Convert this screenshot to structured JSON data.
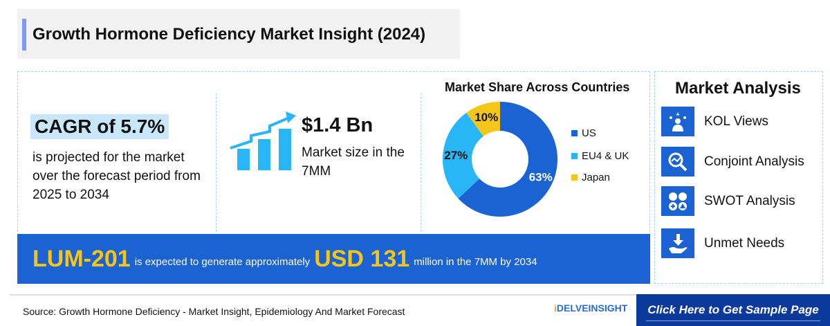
{
  "title": "Growth Hormone Deficiency Market Insight (2024)",
  "cagr": {
    "headline": "CAGR of 5.7%",
    "text": "is projected for the market over the forecast period from 2025 to 2034"
  },
  "market_size": {
    "value": "$1.4 Bn",
    "text": "Market size in the 7MM"
  },
  "chart_data": {
    "type": "pie",
    "title": "Market Share Across Countries",
    "categories": [
      "US",
      "EU4 & UK",
      "Japan"
    ],
    "values": [
      63,
      27,
      10
    ],
    "labels": [
      "63%",
      "27%",
      "10%"
    ],
    "colors": [
      "#1b63d2",
      "#29b6f6",
      "#f5c518"
    ],
    "legend": "right"
  },
  "banner": {
    "drug": "LUM-201",
    "text1": "is expected to generate approximately",
    "amount": "USD 131",
    "text2": "million in the 7MM by 2034"
  },
  "market_analysis": {
    "title": "Market Analysis",
    "items": [
      {
        "label": "KOL Views",
        "icon": "kol-icon"
      },
      {
        "label": "Conjoint Analysis",
        "icon": "analysis-icon"
      },
      {
        "label": "SWOT Analysis",
        "icon": "swot-icon"
      },
      {
        "label": "Unmet Needs",
        "icon": "unmet-needs-icon"
      }
    ]
  },
  "footer": {
    "source": "Source: Growth Hormone Deficiency - Market Insight, Epidemiology And Market Forecast",
    "logo": "DELVEINSIGHT",
    "cta": "Click Here to Get Sample Page"
  }
}
